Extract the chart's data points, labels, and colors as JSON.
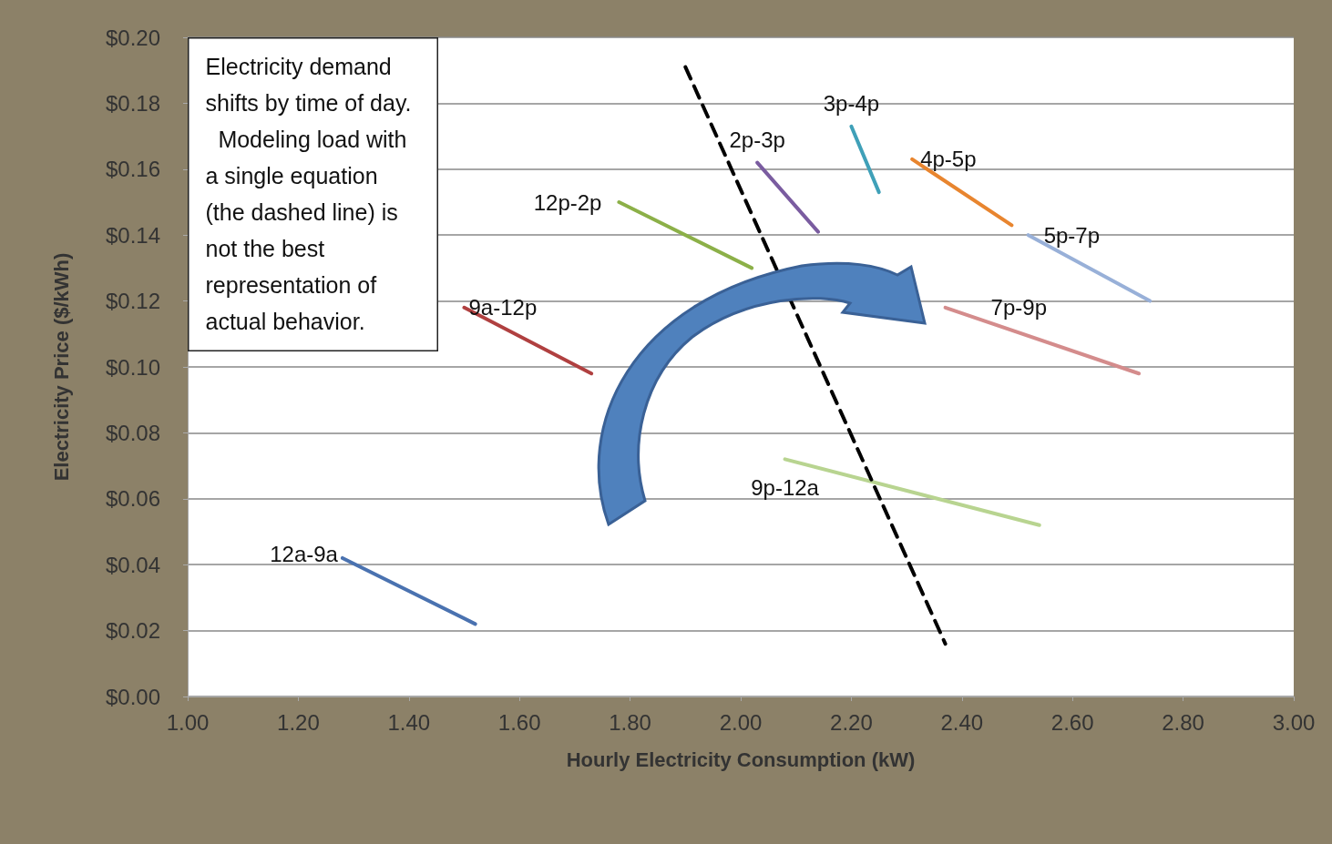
{
  "chart_data": {
    "type": "line",
    "xlabel": "Hourly Electricity Consumption (kW)",
    "ylabel": "Electricity Price ($/kWh)",
    "annotations": [
      "Electricity demand shifts by time of day.  Modeling load with a single equation (the dashed line) is not the best representation of actual behavior."
    ],
    "xlim": [
      1,
      3
    ],
    "xticks": [
      {
        "value": 1,
        "label": "1.00"
      },
      {
        "value": 1.2,
        "label": "1.20"
      },
      {
        "value": 1.4,
        "label": "1.40"
      },
      {
        "value": 1.6,
        "label": "1.60"
      },
      {
        "value": 1.8,
        "label": "1.80"
      },
      {
        "value": 2,
        "label": "2.00"
      },
      {
        "value": 2.2,
        "label": "2.20"
      },
      {
        "value": 2.4,
        "label": "2.40"
      },
      {
        "value": 2.6,
        "label": "2.60"
      },
      {
        "value": 2.8,
        "label": "2.80"
      },
      {
        "value": 3,
        "label": "3.00"
      }
    ],
    "ylim": [
      0,
      0.2
    ],
    "yticks": [
      {
        "value": 0,
        "label": "$0.00"
      },
      {
        "value": 0.02,
        "label": "$0.02"
      },
      {
        "value": 0.04,
        "label": "$0.04"
      },
      {
        "value": 0.06,
        "label": "$0.06"
      },
      {
        "value": 0.08,
        "label": "$0.08"
      },
      {
        "value": 0.1,
        "label": "$0.10"
      },
      {
        "value": 0.12,
        "label": "$0.12"
      },
      {
        "value": 0.14,
        "label": "$0.14"
      },
      {
        "value": 0.16,
        "label": "$0.16"
      },
      {
        "value": 0.18,
        "label": "$0.18"
      },
      {
        "value": 0.2,
        "label": "$0.20"
      }
    ],
    "grid": "y",
    "marker": "none",
    "line_style": "solid",
    "series": [
      {
        "name": "12a-9a",
        "color": "#4a72b0",
        "x": [
          1.28,
          1.52
        ],
        "values": [
          0.042,
          0.022
        ]
      },
      {
        "name": "9a-12p",
        "color": "#b04040",
        "x": [
          1.5,
          1.73
        ],
        "values": [
          0.118,
          0.098
        ]
      },
      {
        "name": "12p-2p",
        "color": "#8cb048",
        "x": [
          1.78,
          2.02
        ],
        "values": [
          0.15,
          0.13
        ]
      },
      {
        "name": "2p-3p",
        "color": "#7a5ca0",
        "x": [
          2.03,
          2.14
        ],
        "values": [
          0.162,
          0.141
        ]
      },
      {
        "name": "3p-4p",
        "color": "#3fa0b8",
        "x": [
          2.2,
          2.25
        ],
        "values": [
          0.173,
          0.153
        ]
      },
      {
        "name": "4p-5p",
        "color": "#e8852f",
        "x": [
          2.31,
          2.49
        ],
        "values": [
          0.163,
          0.143
        ]
      },
      {
        "name": "5p-7p",
        "color": "#98b0d8",
        "x": [
          2.52,
          2.74
        ],
        "values": [
          0.14,
          0.12
        ]
      },
      {
        "name": "7p-9p",
        "color": "#d48c8c",
        "x": [
          2.37,
          2.72
        ],
        "values": [
          0.118,
          0.098
        ]
      },
      {
        "name": "9p-12a",
        "color": "#b8d490",
        "x": [
          2.08,
          2.54
        ],
        "values": [
          0.072,
          0.052
        ]
      },
      {
        "color": "#000000",
        "line_style": "dashed",
        "x": [
          1.9,
          2.37
        ],
        "values": [
          0.191,
          0.016
        ]
      }
    ]
  }
}
